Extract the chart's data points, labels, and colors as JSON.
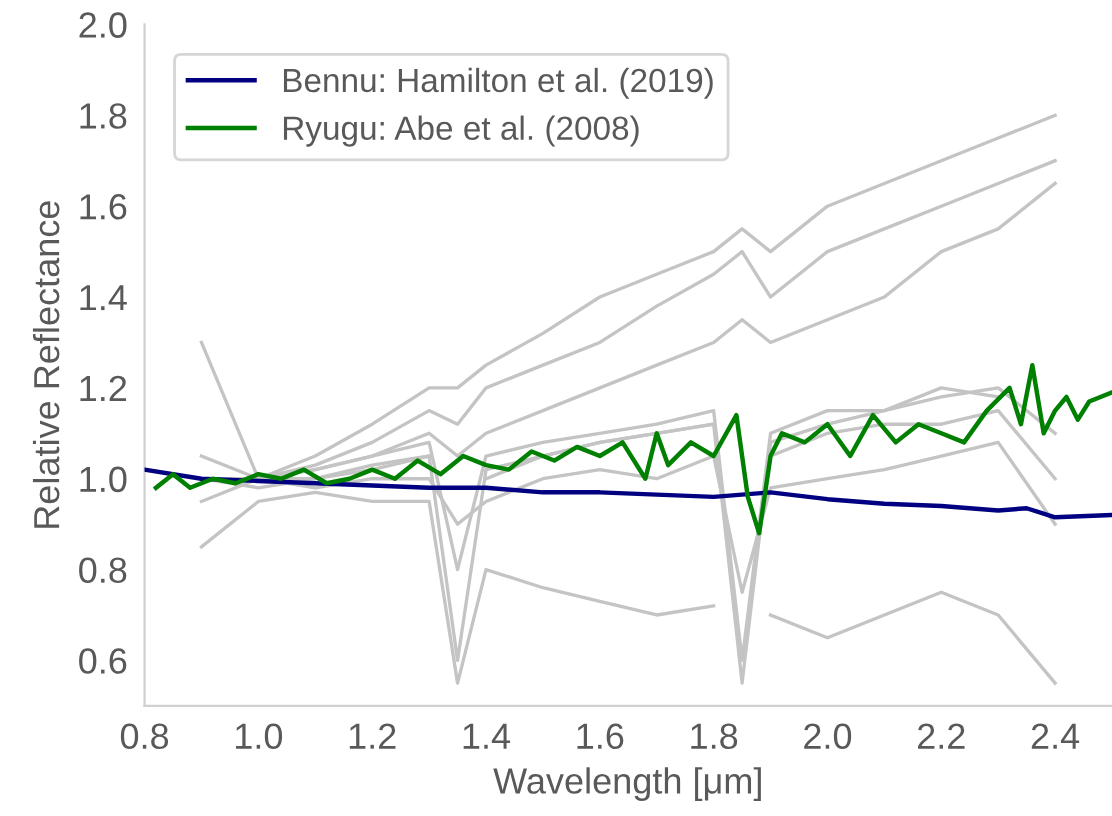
{
  "chart_data": {
    "type": "line",
    "xlabel": "Wavelength [μm]",
    "ylabel": "Relative Reflectance",
    "xlim": [
      0.8,
      2.5
    ],
    "xticks": [
      {
        "value": 0.8,
        "label": "0.8"
      },
      {
        "value": 1.0,
        "label": "1.0"
      },
      {
        "value": 1.2,
        "label": "1.2"
      },
      {
        "value": 1.4,
        "label": "1.4"
      },
      {
        "value": 1.6,
        "label": "1.6"
      },
      {
        "value": 1.8,
        "label": "1.8"
      },
      {
        "value": 2.0,
        "label": "2.0"
      },
      {
        "value": 2.2,
        "label": "2.2"
      },
      {
        "value": 2.4,
        "label": "2.4"
      }
    ],
    "ylim": [
      0.5,
      2.0
    ],
    "yticks": [
      {
        "value": 0.6,
        "label": "0.6"
      },
      {
        "value": 0.8,
        "label": "0.8"
      },
      {
        "value": 1.0,
        "label": "1.0"
      },
      {
        "value": 1.2,
        "label": "1.2"
      },
      {
        "value": 1.4,
        "label": "1.4"
      },
      {
        "value": 1.6,
        "label": "1.6"
      },
      {
        "value": 1.8,
        "label": "1.8"
      },
      {
        "value": 2.0,
        "label": "2.0"
      }
    ],
    "grid": false,
    "legend": "top left",
    "marker": "none",
    "line_style": "solid",
    "series": [
      {
        "color": "#c4c4c4",
        "x": [
          0.9,
          1.0,
          1.1,
          1.2,
          1.3,
          1.35,
          1.4,
          1.5,
          1.6,
          1.7,
          1.8,
          1.85,
          1.9,
          2.0,
          2.1,
          2.2,
          2.3,
          2.4
        ],
        "values": [
          1.0,
          1.0,
          1.05,
          1.12,
          1.2,
          1.2,
          1.25,
          1.32,
          1.4,
          1.45,
          1.5,
          1.55,
          1.5,
          1.6,
          1.65,
          1.7,
          1.75,
          1.8
        ]
      },
      {
        "color": "#c4c4c4",
        "x": [
          0.9,
          1.0,
          1.1,
          1.2,
          1.3,
          1.35,
          1.4,
          1.5,
          1.6,
          1.7,
          1.8,
          1.85,
          1.9,
          2.0,
          2.1,
          2.2,
          2.3,
          2.4
        ],
        "values": [
          1.0,
          1.0,
          1.03,
          1.08,
          1.15,
          1.12,
          1.2,
          1.25,
          1.3,
          1.38,
          1.45,
          1.5,
          1.4,
          1.5,
          1.55,
          1.6,
          1.65,
          1.7
        ]
      },
      {
        "color": "#c4c4c4",
        "x": [
          0.9,
          1.0,
          1.1,
          1.2,
          1.3,
          1.35,
          1.4,
          1.5,
          1.6,
          1.7,
          1.8,
          1.85,
          1.9,
          2.0,
          2.1,
          2.2,
          2.3,
          2.4
        ],
        "values": [
          1.0,
          1.0,
          1.02,
          1.05,
          1.1,
          1.05,
          1.1,
          1.15,
          1.2,
          1.25,
          1.3,
          1.35,
          1.3,
          1.35,
          1.4,
          1.5,
          1.55,
          1.65
        ]
      },
      {
        "color": "#c4c4c4",
        "x": [
          0.9,
          1.0,
          1.1,
          1.2,
          1.3,
          1.35,
          1.4,
          1.5,
          1.6,
          1.7,
          1.8,
          1.85,
          1.9,
          2.0,
          2.1,
          2.2,
          2.3,
          2.4
        ],
        "values": [
          1.05,
          1.0,
          1.02,
          1.05,
          1.08,
          0.8,
          1.05,
          1.08,
          1.1,
          1.12,
          1.15,
          0.6,
          1.1,
          1.15,
          1.15,
          1.18,
          1.2,
          1.1
        ]
      },
      {
        "color": "#c4c4c4",
        "x": [
          0.9,
          1.0,
          1.1,
          1.2,
          1.3,
          1.35,
          1.4,
          1.5,
          1.6,
          1.7,
          1.8,
          1.85,
          1.9,
          2.0,
          2.1,
          2.2,
          2.3,
          2.4
        ],
        "values": [
          1.0,
          0.98,
          1.0,
          1.02,
          1.05,
          null,
          1.0,
          1.05,
          1.08,
          1.1,
          1.12,
          null,
          1.05,
          1.1,
          1.12,
          1.12,
          1.15,
          1.0
        ]
      },
      {
        "color": "#c4c4c4",
        "x": [
          0.9,
          1.0,
          1.1,
          1.2,
          1.3,
          1.35,
          1.4,
          1.5,
          1.6,
          1.7,
          1.8,
          1.85,
          1.9,
          2.0,
          2.1,
          2.2,
          2.3,
          2.4
        ],
        "values": [
          0.85,
          0.95,
          0.97,
          0.95,
          0.95,
          0.55,
          0.8,
          0.76,
          0.73,
          0.7,
          0.72,
          null,
          0.7,
          0.65,
          0.7,
          0.75,
          0.7,
          0.55
        ]
      },
      {
        "color": "#c4c4c4",
        "x": [
          0.9,
          1.0,
          1.1,
          1.2,
          1.3,
          1.35,
          1.4,
          1.5,
          1.6,
          1.7,
          1.8,
          1.85,
          1.9,
          2.0,
          2.1,
          2.2,
          2.3,
          2.4
        ],
        "values": [
          0.95,
          1.0,
          0.98,
          1.0,
          1.0,
          0.9,
          0.95,
          1.0,
          1.02,
          1.0,
          1.05,
          0.75,
          0.98,
          1.0,
          1.02,
          1.05,
          1.08,
          0.9
        ]
      },
      {
        "color": "#c4c4c4",
        "x": [
          0.9,
          1.0,
          1.1,
          1.2,
          1.3,
          1.35,
          1.4,
          1.5,
          1.6,
          1.7,
          1.8,
          1.85,
          1.9,
          2.0,
          2.1,
          2.2,
          2.3
        ],
        "values": [
          1.3,
          1.0,
          1.0,
          1.03,
          1.05,
          0.6,
          1.02,
          1.05,
          1.08,
          1.1,
          1.12,
          0.55,
          1.08,
          1.12,
          1.15,
          1.2,
          1.18
        ]
      },
      {
        "name": "Bennu: Hamilton et al. (2019)",
        "color": "#000080",
        "x": [
          0.8,
          0.9,
          1.0,
          1.1,
          1.2,
          1.3,
          1.4,
          1.5,
          1.6,
          1.7,
          1.8,
          1.9,
          2.0,
          2.1,
          2.2,
          2.3,
          2.35,
          2.4,
          2.5
        ],
        "values": [
          1.02,
          1.0,
          0.995,
          0.99,
          0.985,
          0.98,
          0.98,
          0.97,
          0.97,
          0.965,
          0.96,
          0.97,
          0.955,
          0.945,
          0.94,
          0.93,
          0.935,
          0.915,
          0.92
        ]
      },
      {
        "name": "Ryugu: Abe et al. (2008)",
        "color": "#008000",
        "x": [
          0.82,
          0.85,
          0.88,
          0.92,
          0.96,
          1.0,
          1.04,
          1.08,
          1.12,
          1.16,
          1.2,
          1.24,
          1.28,
          1.32,
          1.36,
          1.4,
          1.44,
          1.48,
          1.52,
          1.56,
          1.6,
          1.64,
          1.68,
          1.7,
          1.72,
          1.76,
          1.8,
          1.84,
          1.86,
          1.88,
          1.9,
          1.92,
          1.96,
          2.0,
          2.04,
          2.08,
          2.12,
          2.16,
          2.2,
          2.24,
          2.28,
          2.32,
          2.34,
          2.36,
          2.38,
          2.4,
          2.42,
          2.44,
          2.46,
          2.5
        ],
        "values": [
          0.98,
          1.01,
          0.98,
          1.0,
          0.99,
          1.01,
          1.0,
          1.02,
          0.99,
          1.0,
          1.02,
          1.0,
          1.04,
          1.01,
          1.05,
          1.03,
          1.02,
          1.06,
          1.04,
          1.07,
          1.05,
          1.08,
          1.0,
          1.1,
          1.03,
          1.08,
          1.05,
          1.14,
          0.96,
          0.88,
          1.05,
          1.1,
          1.08,
          1.12,
          1.05,
          1.14,
          1.08,
          1.12,
          1.1,
          1.08,
          1.15,
          1.2,
          1.12,
          1.25,
          1.1,
          1.15,
          1.18,
          1.13,
          1.17,
          1.19
        ]
      }
    ]
  }
}
